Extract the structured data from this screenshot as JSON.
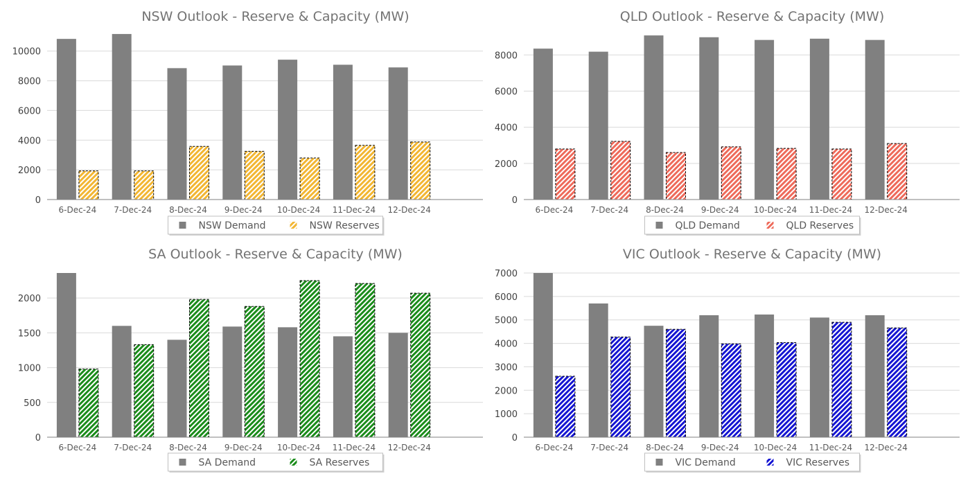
{
  "chart_data": [
    {
      "type": "bar",
      "title": "NSW Outlook - Reserve & Capacity (MW)",
      "categories": [
        "6-Dec-24",
        "7-Dec-24",
        "8-Dec-24",
        "9-Dec-24",
        "10-Dec-24",
        "11-Dec-24",
        "12-Dec-24"
      ],
      "series": [
        {
          "name": "NSW Demand",
          "values": [
            10820,
            11150,
            8850,
            9030,
            9420,
            9080,
            8900
          ],
          "color": "#808080",
          "pattern": "solid"
        },
        {
          "name": "NSW Reserves",
          "values": [
            1930,
            1930,
            3580,
            3250,
            2800,
            3650,
            3880
          ],
          "color": "#f2b632",
          "pattern": "hatched"
        }
      ],
      "ylim": [
        0,
        11200
      ],
      "yticks": [
        0,
        2000,
        4000,
        6000,
        8000,
        10000
      ],
      "grid": true,
      "legend": "bottom"
    },
    {
      "type": "bar",
      "title": "QLD Outlook - Reserve & Capacity (MW)",
      "categories": [
        "6-Dec-24",
        "7-Dec-24",
        "8-Dec-24",
        "9-Dec-24",
        "10-Dec-24",
        "11-Dec-24",
        "12-Dec-24"
      ],
      "series": [
        {
          "name": "QLD Demand",
          "values": [
            8350,
            8180,
            9080,
            8980,
            8830,
            8900,
            8830
          ],
          "color": "#808080",
          "pattern": "solid"
        },
        {
          "name": "QLD Reserves",
          "values": [
            2800,
            3220,
            2600,
            2920,
            2830,
            2800,
            3100
          ],
          "color": "#ee6a5a",
          "pattern": "hatched"
        }
      ],
      "ylim": [
        0,
        9200
      ],
      "yticks": [
        0,
        2000,
        4000,
        6000,
        8000
      ],
      "grid": true,
      "legend": "bottom"
    },
    {
      "type": "bar",
      "title": "SA Outlook - Reserve & Capacity (MW)",
      "categories": [
        "6-Dec-24",
        "7-Dec-24",
        "8-Dec-24",
        "9-Dec-24",
        "10-Dec-24",
        "11-Dec-24",
        "12-Dec-24"
      ],
      "series": [
        {
          "name": "SA Demand",
          "values": [
            2360,
            1600,
            1400,
            1590,
            1580,
            1450,
            1500
          ],
          "color": "#808080",
          "pattern": "solid"
        },
        {
          "name": "SA Reserves",
          "values": [
            980,
            1330,
            1980,
            1880,
            2250,
            2210,
            2070
          ],
          "color": "#1a8c1a",
          "pattern": "hatched"
        }
      ],
      "ylim": [
        0,
        2360
      ],
      "yticks": [
        0,
        500,
        1000,
        1500,
        2000
      ],
      "grid": true,
      "legend": "bottom"
    },
    {
      "type": "bar",
      "title": "VIC Outlook - Reserve & Capacity (MW)",
      "categories": [
        "6-Dec-24",
        "7-Dec-24",
        "8-Dec-24",
        "9-Dec-24",
        "10-Dec-24",
        "11-Dec-24",
        "12-Dec-24"
      ],
      "series": [
        {
          "name": "VIC Demand",
          "values": [
            7000,
            5700,
            4750,
            5200,
            5230,
            5100,
            5200
          ],
          "color": "#808080",
          "pattern": "solid"
        },
        {
          "name": "VIC Reserves",
          "values": [
            2600,
            4270,
            4600,
            3980,
            4030,
            4900,
            4660
          ],
          "color": "#1414d2",
          "pattern": "hatched"
        }
      ],
      "ylim": [
        0,
        7000
      ],
      "yticks": [
        0,
        1000,
        2000,
        3000,
        4000,
        5000,
        6000,
        7000
      ],
      "grid": true,
      "legend": "bottom"
    }
  ]
}
